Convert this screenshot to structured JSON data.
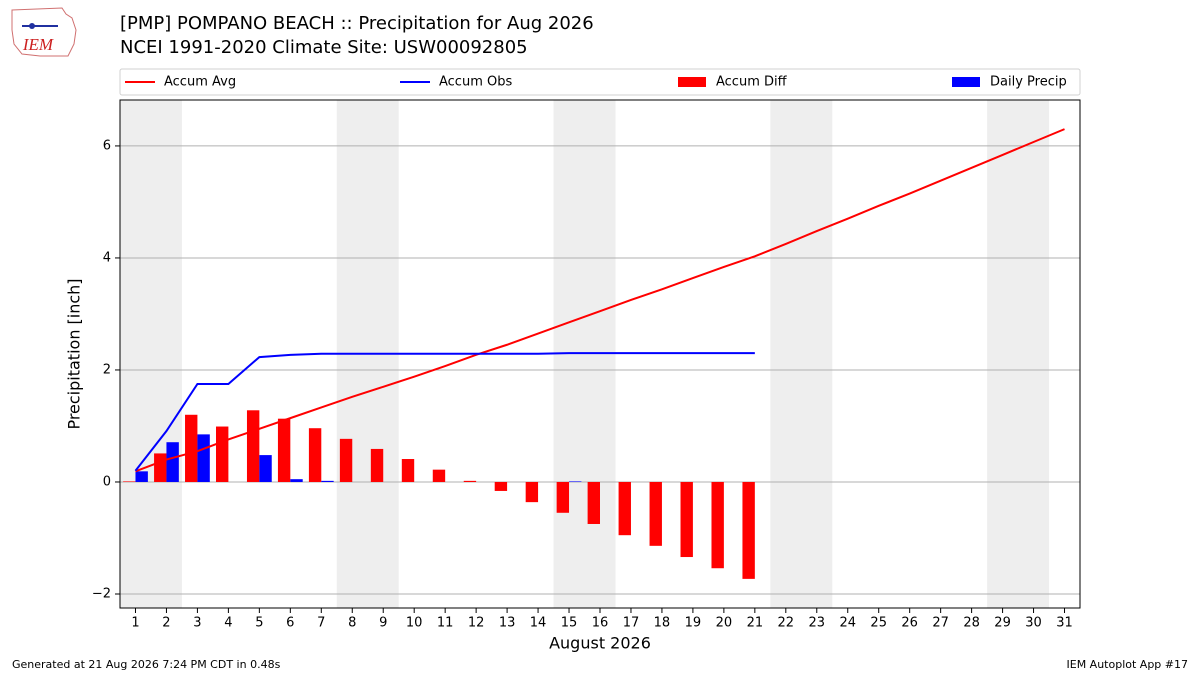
{
  "chart_data": {
    "type": "bar_line",
    "title": "[PMP] POMPANO BEACH :: Precipitation for Aug 2026",
    "subtitle": "NCEI 1991-2020 Climate Site: USW00092805",
    "logo_text": "IEM",
    "xlabel": "August 2026",
    "ylabel": "Precipitation [inch]",
    "footer_left": "Generated at 21 Aug 2026 7:24 PM CDT in 0.48s",
    "footer_right": "IEM Autoplot App #17",
    "x": [
      1,
      2,
      3,
      4,
      5,
      6,
      7,
      8,
      9,
      10,
      11,
      12,
      13,
      14,
      15,
      16,
      17,
      18,
      19,
      20,
      21,
      22,
      23,
      24,
      25,
      26,
      27,
      28,
      29,
      30,
      31
    ],
    "xlim": [
      0.5,
      31.5
    ],
    "xticks": [
      1,
      2,
      3,
      4,
      5,
      6,
      7,
      8,
      9,
      10,
      11,
      12,
      13,
      14,
      15,
      16,
      17,
      18,
      19,
      20,
      21,
      22,
      23,
      24,
      25,
      26,
      27,
      28,
      29,
      30,
      31
    ],
    "ylim": [
      -2.25,
      6.82
    ],
    "yticks": [
      {
        "value": -2,
        "label": "−2"
      },
      0,
      2,
      4,
      6
    ],
    "grid": true,
    "shaded_spans": [
      [
        0.5,
        2.5
      ],
      [
        7.5,
        9.5
      ],
      [
        14.5,
        16.5
      ],
      [
        21.5,
        23.5
      ],
      [
        28.5,
        30.5
      ]
    ],
    "shade_color": "#eeeeee",
    "series": [
      {
        "name": "Accum Avg",
        "type": "line",
        "color": "#ff0000",
        "values": [
          0.19,
          0.4,
          0.55,
          0.76,
          0.95,
          1.14,
          1.33,
          1.52,
          1.7,
          1.88,
          2.07,
          2.27,
          2.45,
          2.65,
          2.85,
          3.05,
          3.25,
          3.44,
          3.64,
          3.84,
          4.03,
          4.25,
          4.48,
          4.7,
          4.93,
          5.15,
          5.38,
          5.61,
          5.84,
          6.07,
          6.3
        ]
      },
      {
        "name": "Accum Obs",
        "type": "line",
        "color": "#0000ff",
        "values": [
          0.2,
          0.91,
          1.75,
          1.75,
          2.23,
          2.27,
          2.29,
          2.29,
          2.29,
          2.29,
          2.29,
          2.29,
          2.29,
          2.29,
          2.3,
          2.3,
          2.3,
          2.3,
          2.3,
          2.3,
          2.3,
          null,
          null,
          null,
          null,
          null,
          null,
          null,
          null,
          null,
          null
        ]
      },
      {
        "name": "Accum Diff",
        "type": "bar",
        "offset": "left",
        "color": "#ff0000",
        "values": [
          0.01,
          0.51,
          1.2,
          0.99,
          1.28,
          1.13,
          0.96,
          0.77,
          0.59,
          0.41,
          0.22,
          0.02,
          -0.16,
          -0.36,
          -0.55,
          -0.75,
          -0.95,
          -1.14,
          -1.34,
          -1.54,
          -1.73,
          null,
          null,
          null,
          null,
          null,
          null,
          null,
          null,
          null,
          null
        ]
      },
      {
        "name": "Daily Precip",
        "type": "bar",
        "offset": "right",
        "color": "#0000ff",
        "values": [
          0.19,
          0.71,
          0.85,
          0,
          0.48,
          0.05,
          0.02,
          0,
          0,
          0,
          0,
          0,
          0,
          0,
          0.01,
          0,
          0,
          0,
          0,
          0,
          0,
          null,
          null,
          null,
          null,
          null,
          null,
          null,
          null,
          null,
          null
        ]
      }
    ]
  }
}
